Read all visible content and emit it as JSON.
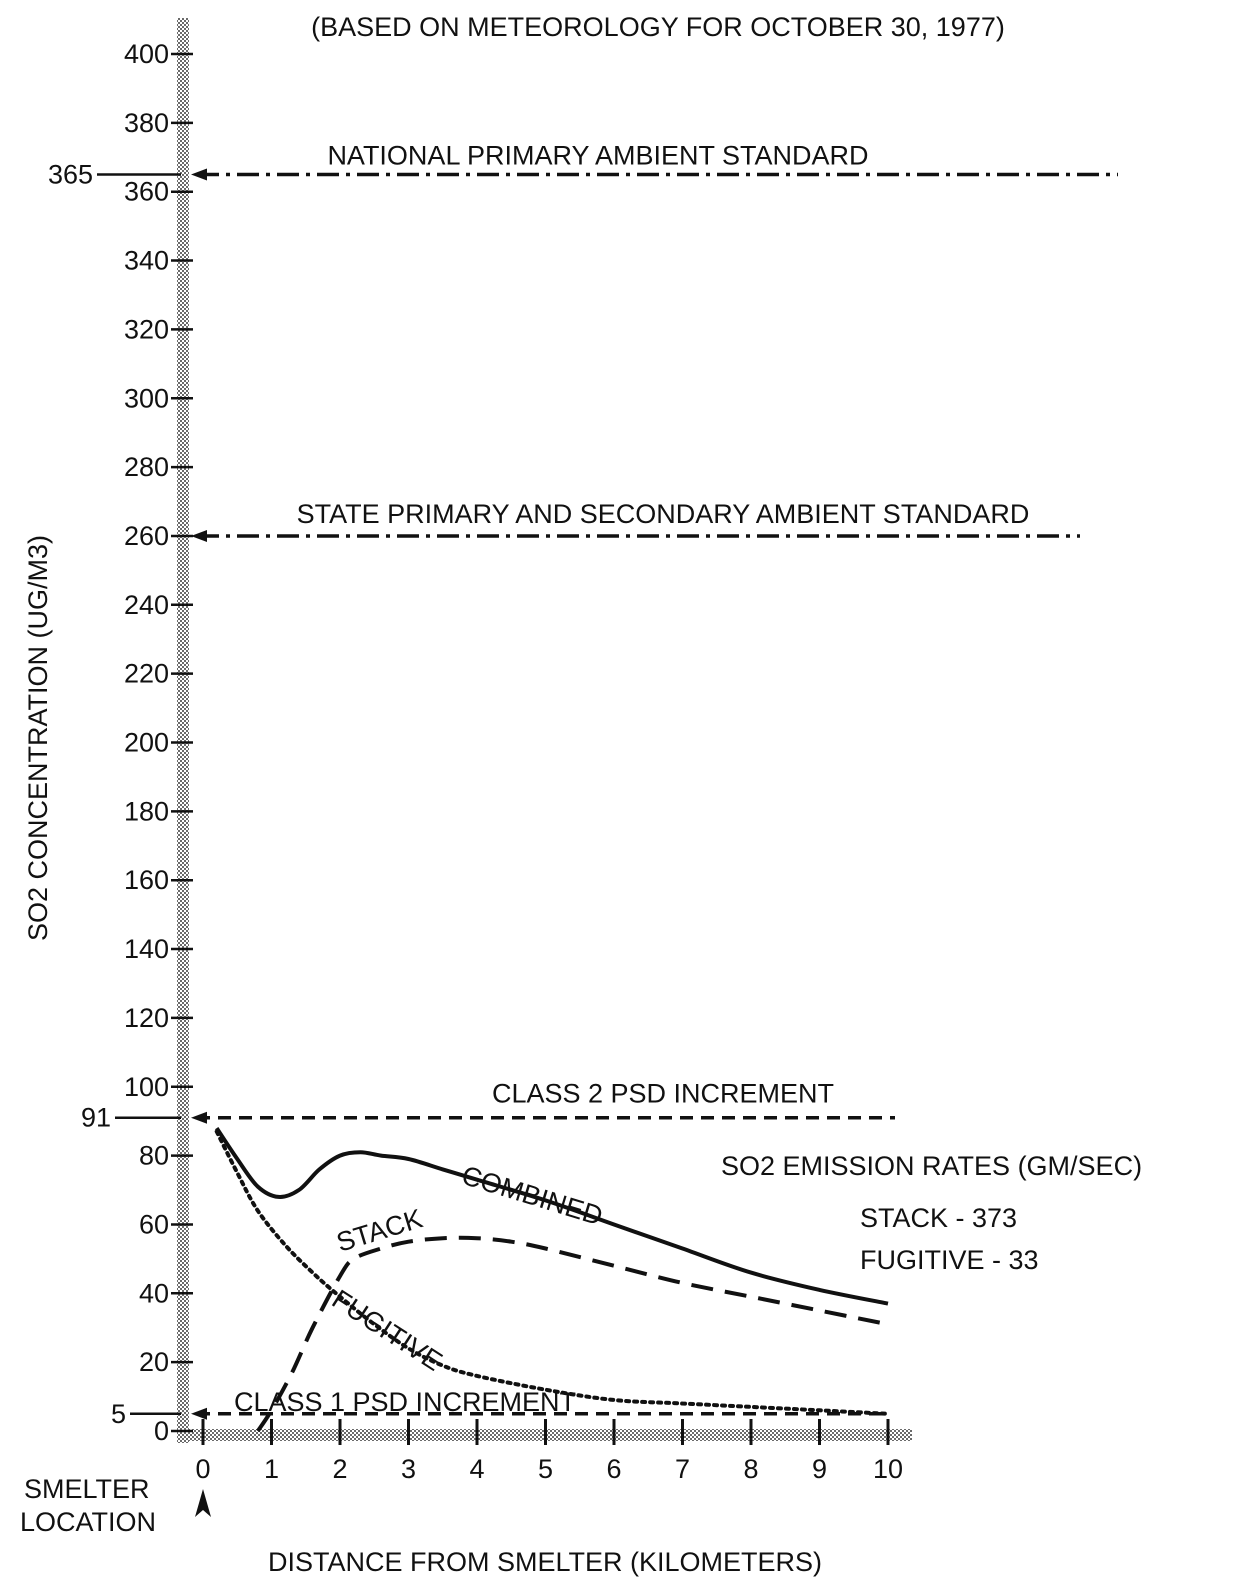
{
  "chart_data": {
    "type": "line",
    "title": "(BASED ON METEOROLOGY FOR OCTOBER 30, 1977)",
    "xlabel": "DISTANCE FROM SMELTER (KILOMETERS)",
    "ylabel": "SO2 CONCENTRATION (UG/M3)",
    "xlim": [
      0,
      10
    ],
    "ylim": [
      0,
      400
    ],
    "x_ticks": [
      0,
      1,
      2,
      3,
      4,
      5,
      6,
      7,
      8,
      9,
      10
    ],
    "y_ticks": [
      0,
      20,
      40,
      60,
      80,
      100,
      120,
      140,
      160,
      180,
      200,
      220,
      240,
      260,
      280,
      300,
      320,
      340,
      360,
      380,
      400
    ],
    "x_origin_label": [
      "SMELTER",
      "LOCATION"
    ],
    "reference_lines": [
      {
        "label": "NATIONAL PRIMARY AMBIENT STANDARD",
        "value": 365,
        "value_label": "365",
        "style": "dash-dot"
      },
      {
        "label": "STATE PRIMARY AND SECONDARY AMBIENT STANDARD",
        "value": 260,
        "style": "dash-dot"
      },
      {
        "label": "CLASS 2 PSD INCREMENT",
        "value": 91,
        "value_label": "91",
        "style": "dashed"
      },
      {
        "label": "CLASS 1 PSD INCREMENT",
        "value": 5,
        "value_label": "5",
        "style": "dashed"
      }
    ],
    "series": [
      {
        "name": "COMBINED",
        "style": "solid",
        "x": [
          0.2,
          0.5,
          0.8,
          1.1,
          1.4,
          1.7,
          2.0,
          2.3,
          2.6,
          3.0,
          3.5,
          4.0,
          5.0,
          6.0,
          7.0,
          8.0,
          9.0,
          10.0
        ],
        "y": [
          88,
          79,
          71,
          68,
          70,
          76,
          80,
          81,
          80,
          79,
          76,
          73,
          67,
          60,
          53,
          46,
          41,
          37
        ]
      },
      {
        "name": "STACK",
        "style": "dashed",
        "x": [
          0.8,
          1.0,
          1.3,
          1.6,
          2.0,
          2.2,
          2.6,
          3.0,
          3.5,
          4.0,
          4.5,
          5.0,
          6.0,
          7.0,
          8.0,
          9.0,
          10.0
        ],
        "y": [
          0,
          6,
          17,
          30,
          45,
          50,
          53,
          55,
          56,
          56,
          55,
          53,
          48,
          43,
          39,
          35,
          31
        ]
      },
      {
        "name": "FUGITIVE",
        "style": "dotted",
        "x": [
          0.2,
          0.5,
          0.8,
          1.2,
          1.6,
          2.0,
          2.5,
          3.0,
          3.5,
          4.0,
          5.0,
          6.0,
          7.0,
          8.0,
          9.0,
          10.0
        ],
        "y": [
          87,
          75,
          64,
          54,
          46,
          39,
          31,
          24,
          19,
          16,
          12,
          9,
          8,
          7,
          6,
          5
        ]
      }
    ],
    "annotations": [
      "SO2 EMISSION RATES (GM/SEC)",
      "STACK - 373",
      "FUGITIVE - 33"
    ]
  }
}
